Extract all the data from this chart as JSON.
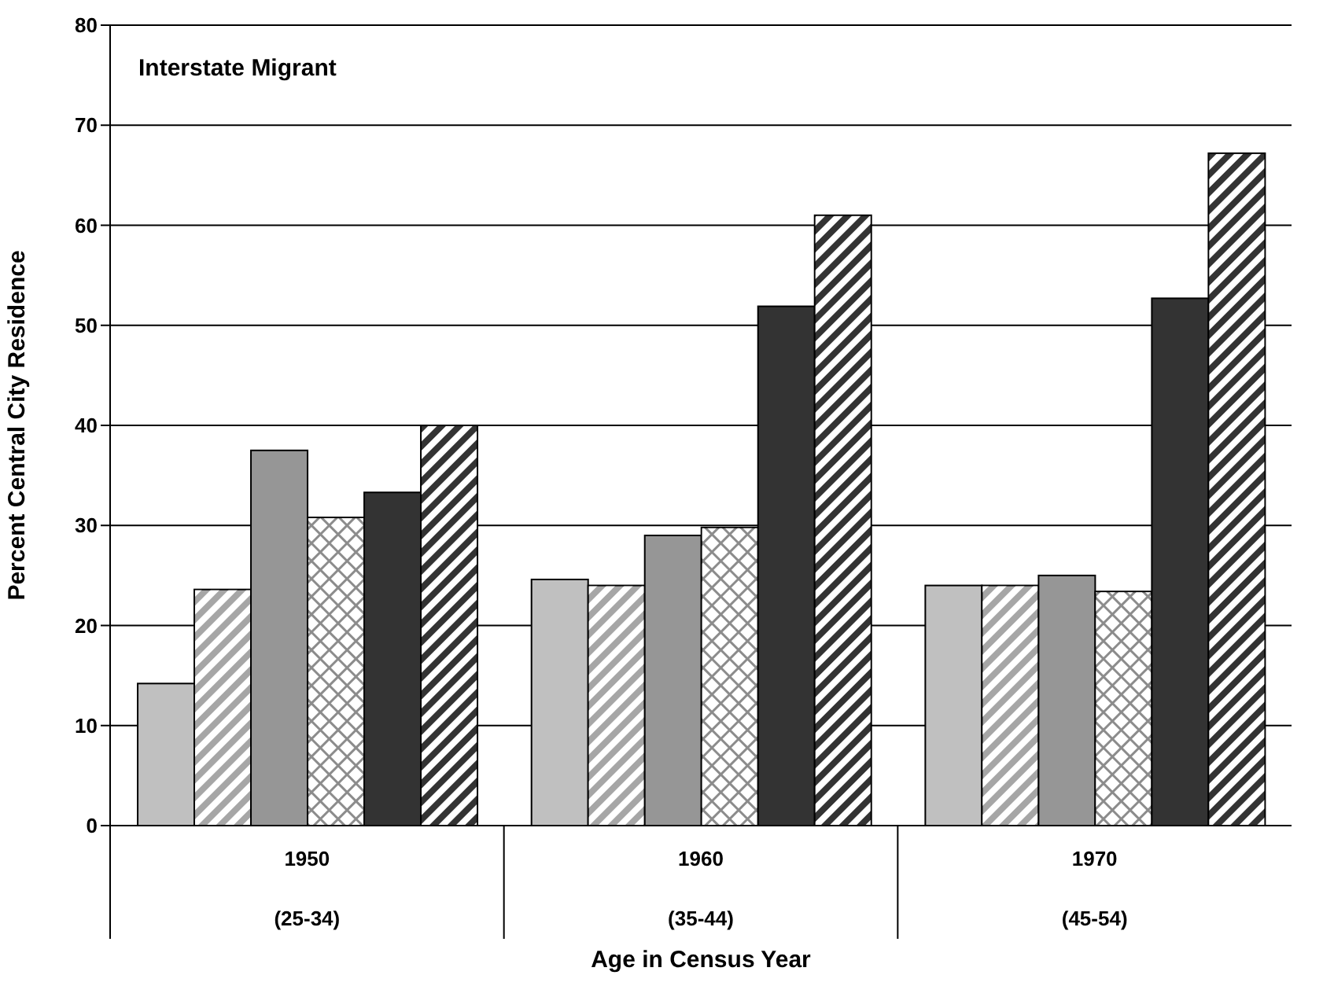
{
  "chart_data": {
    "type": "bar",
    "xlabel": "Age in Census Year",
    "ylabel": "Percent Central City Residence",
    "annotations": [
      "Interstate Migrant"
    ],
    "categories": [
      "1950\n(25-34)",
      "1960\n(35-44)",
      "1970\n(45-54)"
    ],
    "series": [
      {
        "color": "#c0c0c0",
        "values": [
          14.2,
          24.6,
          24.0
        ]
      },
      {
        "color": "#a6a6a6",
        "values": [
          23.6,
          24.0,
          24.0
        ]
      },
      {
        "color": "#969696",
        "values": [
          37.5,
          29.0,
          25.0
        ]
      },
      {
        "color": "#8c8c8c",
        "values": [
          30.8,
          29.8,
          23.4
        ]
      },
      {
        "color": "#333333",
        "values": [
          33.3,
          51.9,
          52.7
        ]
      },
      {
        "color": "#333333",
        "values": [
          40.0,
          61.0,
          67.2
        ]
      }
    ],
    "ylim": [
      0,
      80
    ],
    "yticks": [
      0,
      10,
      20,
      30,
      40,
      50,
      60,
      70,
      80
    ],
    "grid": "y"
  }
}
